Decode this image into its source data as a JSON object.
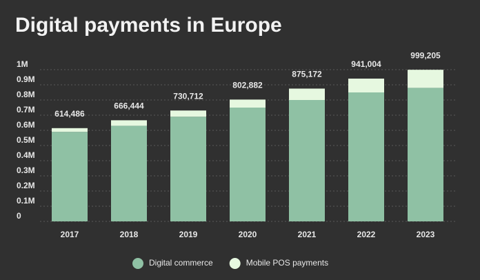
{
  "chart_data": {
    "type": "stacked_bar",
    "title": "Digital payments in Europe",
    "categories": [
      "2017",
      "2018",
      "2019",
      "2020",
      "2021",
      "2022",
      "2023"
    ],
    "series": [
      {
        "name": "Digital commerce",
        "color": "#8fc1a4",
        "values": [
          590000,
          630000,
          690000,
          750000,
          800000,
          850000,
          880000
        ]
      },
      {
        "name": "Mobile POS payments",
        "color": "#e6f8e0",
        "values": [
          24486,
          36444,
          40712,
          52882,
          75172,
          91004,
          119205
        ]
      }
    ],
    "total_labels": [
      "614,486",
      "666,444",
      "730,712",
      "802,882",
      "875,172",
      "941,004",
      "999,205"
    ],
    "ylim": [
      0,
      1000000
    ],
    "yticks": [
      0,
      {
        "value": 100000,
        "label": "0.1M"
      },
      {
        "value": 200000,
        "label": "0.2M"
      },
      {
        "value": 300000,
        "label": "0.3M"
      },
      {
        "value": 400000,
        "label": "0.4M"
      },
      {
        "value": 500000,
        "label": "0.5M"
      },
      {
        "value": 600000,
        "label": "0.6M"
      },
      {
        "value": 700000,
        "label": "0.7M"
      },
      {
        "value": 800000,
        "label": "0.8M"
      },
      {
        "value": 900000,
        "label": "0.9M"
      },
      {
        "value": 1000000,
        "label": "1M"
      }
    ],
    "grid": true
  }
}
